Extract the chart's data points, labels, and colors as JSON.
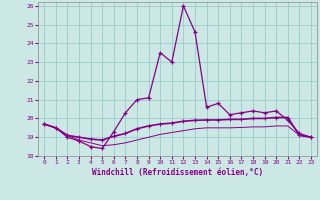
{
  "xlabel": "Windchill (Refroidissement éolien,°C)",
  "background_color": "#cce8e4",
  "grid_color": "#99cccc",
  "line_color": "#880088",
  "xlim": [
    -0.5,
    23.5
  ],
  "ylim": [
    18,
    26.2
  ],
  "yticks": [
    18,
    19,
    20,
    21,
    22,
    23,
    24,
    25,
    26
  ],
  "xticks": [
    0,
    1,
    2,
    3,
    4,
    5,
    6,
    7,
    8,
    9,
    10,
    11,
    12,
    13,
    14,
    15,
    16,
    17,
    18,
    19,
    20,
    21,
    22,
    23
  ],
  "line1_x": [
    0,
    1,
    2,
    3,
    4,
    5,
    6,
    7,
    8,
    9,
    10,
    11,
    12,
    13,
    14,
    15,
    16,
    17,
    18,
    19,
    20,
    21,
    22,
    23
  ],
  "line1_y": [
    19.7,
    19.5,
    19.0,
    18.8,
    18.5,
    18.4,
    19.3,
    20.3,
    21.0,
    21.1,
    23.5,
    23.0,
    26.0,
    24.6,
    20.6,
    20.8,
    20.2,
    20.3,
    20.4,
    20.3,
    20.4,
    19.9,
    19.2,
    19.0
  ],
  "line2_x": [
    0,
    1,
    2,
    3,
    4,
    5,
    6,
    7,
    8,
    9,
    10,
    11,
    12,
    13,
    14,
    15,
    16,
    17,
    18,
    19,
    20,
    21,
    22,
    23
  ],
  "line2_y": [
    19.7,
    19.5,
    19.1,
    19.0,
    18.9,
    18.85,
    19.05,
    19.2,
    19.45,
    19.6,
    19.7,
    19.75,
    19.85,
    19.9,
    19.92,
    19.92,
    19.95,
    19.95,
    20.0,
    20.0,
    20.05,
    20.05,
    19.1,
    19.0
  ],
  "line3_x": [
    0,
    1,
    2,
    3,
    4,
    5,
    6,
    7,
    8,
    9,
    10,
    11,
    12,
    13,
    14,
    15,
    16,
    17,
    18,
    19,
    20,
    21,
    22,
    23
  ],
  "line3_y": [
    19.7,
    19.5,
    19.1,
    18.85,
    18.7,
    18.55,
    18.6,
    18.7,
    18.85,
    19.0,
    19.15,
    19.25,
    19.35,
    19.45,
    19.5,
    19.5,
    19.5,
    19.52,
    19.55,
    19.55,
    19.6,
    19.6,
    19.1,
    19.0
  ]
}
